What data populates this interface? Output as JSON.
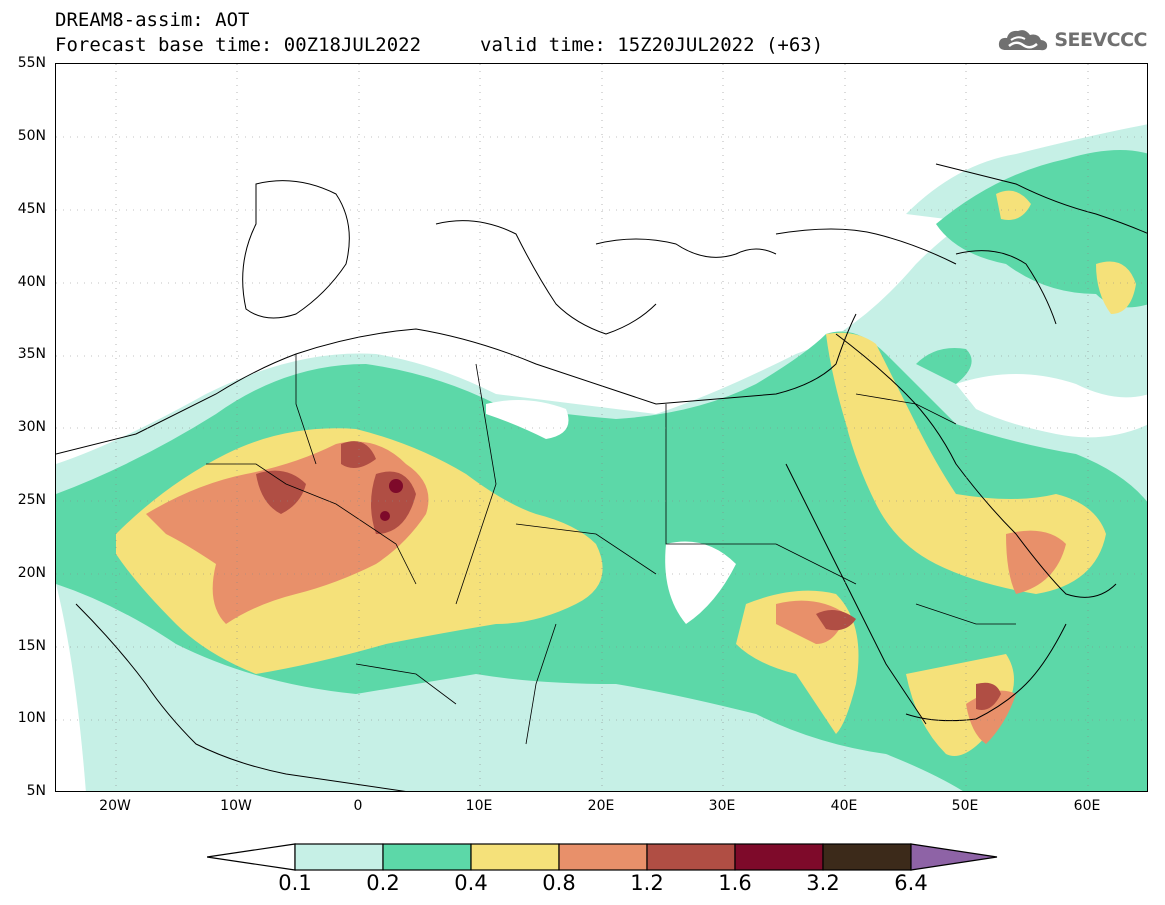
{
  "header": {
    "title": "DREAM8-assim: AOT",
    "base_time": "Forecast base time: 00Z18JUL2022",
    "valid_time": "valid time: 15Z20JUL2022 (+63)"
  },
  "logo": {
    "text": "SEEVCCC",
    "icon": "cloud-icon"
  },
  "map": {
    "lat_labels": [
      "55N",
      "50N",
      "45N",
      "40N",
      "35N",
      "30N",
      "25N",
      "20N",
      "15N",
      "10N",
      "5N"
    ],
    "lon_labels": [
      "20W",
      "10W",
      "0",
      "10E",
      "20E",
      "30E",
      "40E",
      "50E",
      "60E"
    ],
    "lat_range": [
      5,
      55
    ],
    "lon_range": [
      -25,
      65
    ]
  },
  "colorbar": {
    "levels": [
      "0.1",
      "0.2",
      "0.4",
      "0.8",
      "1.2",
      "1.6",
      "3.2",
      "6.4"
    ],
    "colors": [
      "#c6f0e6",
      "#5cd8a8",
      "#f5e17a",
      "#e8906a",
      "#b04e44",
      "#7e0a2a",
      "#3c2a1a"
    ],
    "under_color": "#ffffff",
    "over_color": "#8e63a6"
  }
}
